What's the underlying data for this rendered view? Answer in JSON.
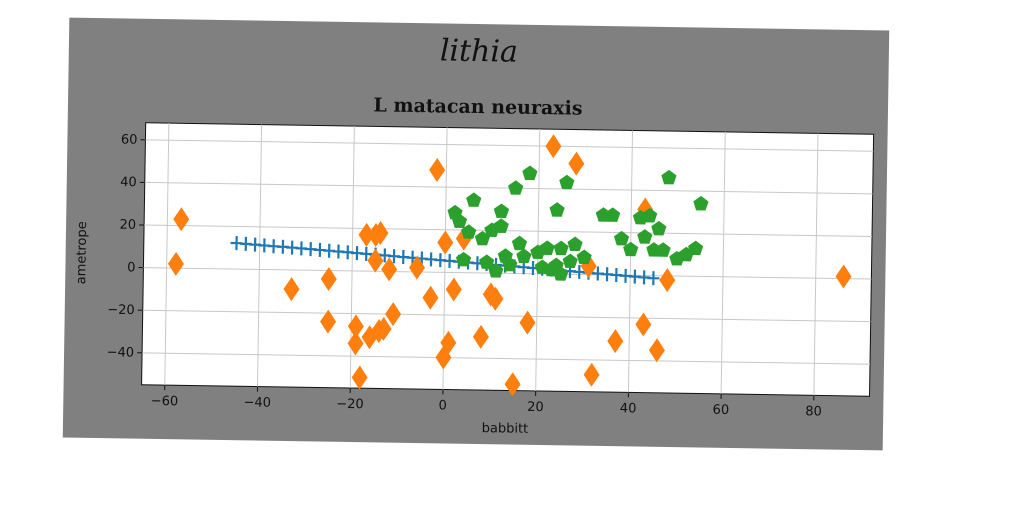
{
  "watermark": "lithia",
  "chart_data": {
    "type": "scatter",
    "title": "L matacan neuraxis",
    "xlabel": "babbitt",
    "ylabel": "ametrope",
    "xlim": [
      -65,
      92
    ],
    "ylim": [
      -55,
      68
    ],
    "xticks": [
      -60,
      -40,
      -20,
      0,
      20,
      40,
      60,
      80
    ],
    "yticks": [
      -40,
      -20,
      0,
      20,
      40,
      60
    ],
    "grid": true,
    "series": [
      {
        "marker": "plus",
        "color": "#1f77b4",
        "x": [
          -45,
          -43,
          -41,
          -39,
          -37,
          -35,
          -33,
          -31,
          -29,
          -27,
          -25,
          -23,
          -21,
          -19,
          -17,
          -15,
          -13,
          -11,
          -9,
          -7,
          -5,
          -3,
          -1,
          1,
          3,
          5,
          7,
          9,
          11,
          13,
          15,
          17,
          19,
          21,
          23,
          25,
          27,
          29,
          31,
          33,
          35,
          37,
          39,
          41,
          43,
          45
        ],
        "y": [
          12.2,
          11.9,
          11.6,
          11.3,
          11.0,
          10.8,
          10.5,
          10.2,
          9.9,
          9.6,
          9.3,
          9.0,
          8.7,
          8.4,
          8.1,
          7.8,
          7.5,
          7.2,
          6.9,
          6.6,
          6.3,
          6.0,
          5.7,
          5.4,
          5.1,
          4.8,
          4.5,
          4.2,
          3.9,
          3.6,
          3.3,
          3.0,
          2.7,
          2.4,
          2.1,
          1.8,
          1.5,
          1.2,
          0.9,
          0.6,
          0.3,
          0.0,
          -0.3,
          -0.6,
          -0.9,
          -1.2
        ]
      },
      {
        "marker": "diamond",
        "color": "#ff7f0e",
        "x": [
          -57,
          -58,
          -33,
          -25,
          -25,
          -19,
          -19,
          -18,
          -16,
          -15,
          -15,
          -14,
          -12,
          -11,
          -13,
          -14,
          -6,
          -3,
          -2,
          0,
          0,
          1,
          2,
          4,
          8,
          10,
          11,
          15,
          18,
          23,
          28,
          31,
          32,
          37,
          43,
          43,
          46,
          48,
          86,
          -17
        ],
        "y": [
          23,
          2,
          -9,
          -4,
          -24,
          -26,
          -34,
          -50,
          -31,
          5,
          17,
          -28,
          1,
          -20,
          -27,
          18,
          2,
          -12,
          48,
          14,
          -40,
          -33,
          -8,
          16,
          -30,
          -10,
          -12,
          -52,
          -23,
          60,
          52,
          4,
          -47,
          -31,
          -23,
          31,
          -35,
          -2,
          1,
          17
        ]
      },
      {
        "marker": "pentagon",
        "color": "#2ca02c",
        "x": [
          2,
          3,
          4,
          6,
          5,
          8,
          9,
          10,
          11,
          12,
          12,
          13,
          14,
          15,
          16,
          18,
          20,
          21,
          22,
          23,
          24,
          25,
          25,
          26,
          27,
          28,
          30,
          34,
          36,
          38,
          40,
          42,
          43,
          44,
          45,
          46,
          47,
          48,
          50,
          52,
          54,
          55,
          17,
          24
        ],
        "y": [
          28,
          24,
          6,
          34,
          19,
          16,
          5,
          20,
          1,
          29,
          22,
          8,
          4,
          40,
          14,
          47,
          10,
          3,
          12,
          2,
          30,
          12,
          0,
          43,
          6,
          14,
          8,
          28,
          28,
          17,
          12,
          27,
          18,
          28,
          12,
          22,
          12,
          46,
          8,
          10,
          13,
          34,
          8,
          4
        ]
      }
    ]
  }
}
